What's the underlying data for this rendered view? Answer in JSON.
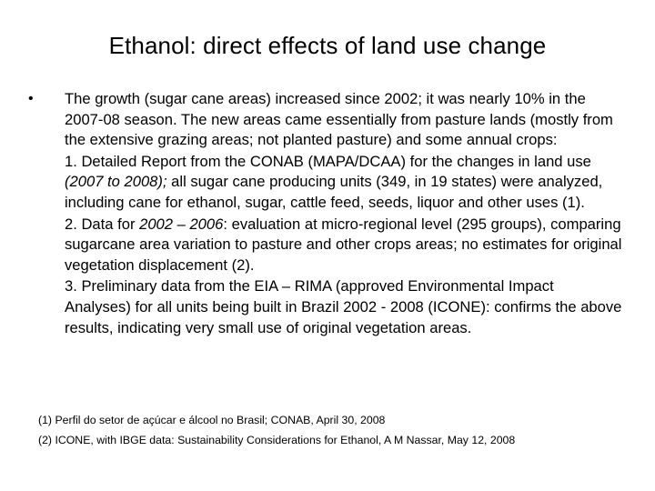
{
  "slide": {
    "title": "Ethanol: direct effects of land use change",
    "bullet": {
      "marker": "•",
      "intro": "The growth (sugar cane areas) increased since 2002; it was  nearly 10% in the 2007-08 season. The new areas came essentially from pasture lands (mostly from the extensive grazing areas; not planted pasture) and some annual crops:",
      "items": [
        {
          "before": "1. Detailed Report from the CONAB (MAPA/DCAA) for the changes in land use ",
          "italic": "(2007 to 2008);",
          "after": " all sugar cane producing units (349, in 19 states) were analyzed, including cane for ethanol, sugar, cattle feed, seeds, liquor and other uses (1)."
        },
        {
          "before": "2. Data for ",
          "italic": "2002 – 2006",
          "after": ": evaluation at micro-regional level (295 groups), comparing sugarcane area variation to pasture and other crops areas; no estimates for original vegetation displacement  (2)."
        },
        {
          "before": "3. Preliminary data from the EIA – RIMA (approved Environmental Impact Analyses) for all units being built in Brazil 2002 - 2008 (ICONE): confirms the above results, indicating very small use of original vegetation areas.",
          "italic": "",
          "after": ""
        }
      ]
    },
    "footnotes": [
      "(1) Perfil do setor de açúcar e álcool no Brasil; CONAB, April 30, 2008",
      "(2) ICONE, with IBGE data: Sustainability Considerations for Ethanol, A M Nassar, May 12, 2008"
    ]
  }
}
